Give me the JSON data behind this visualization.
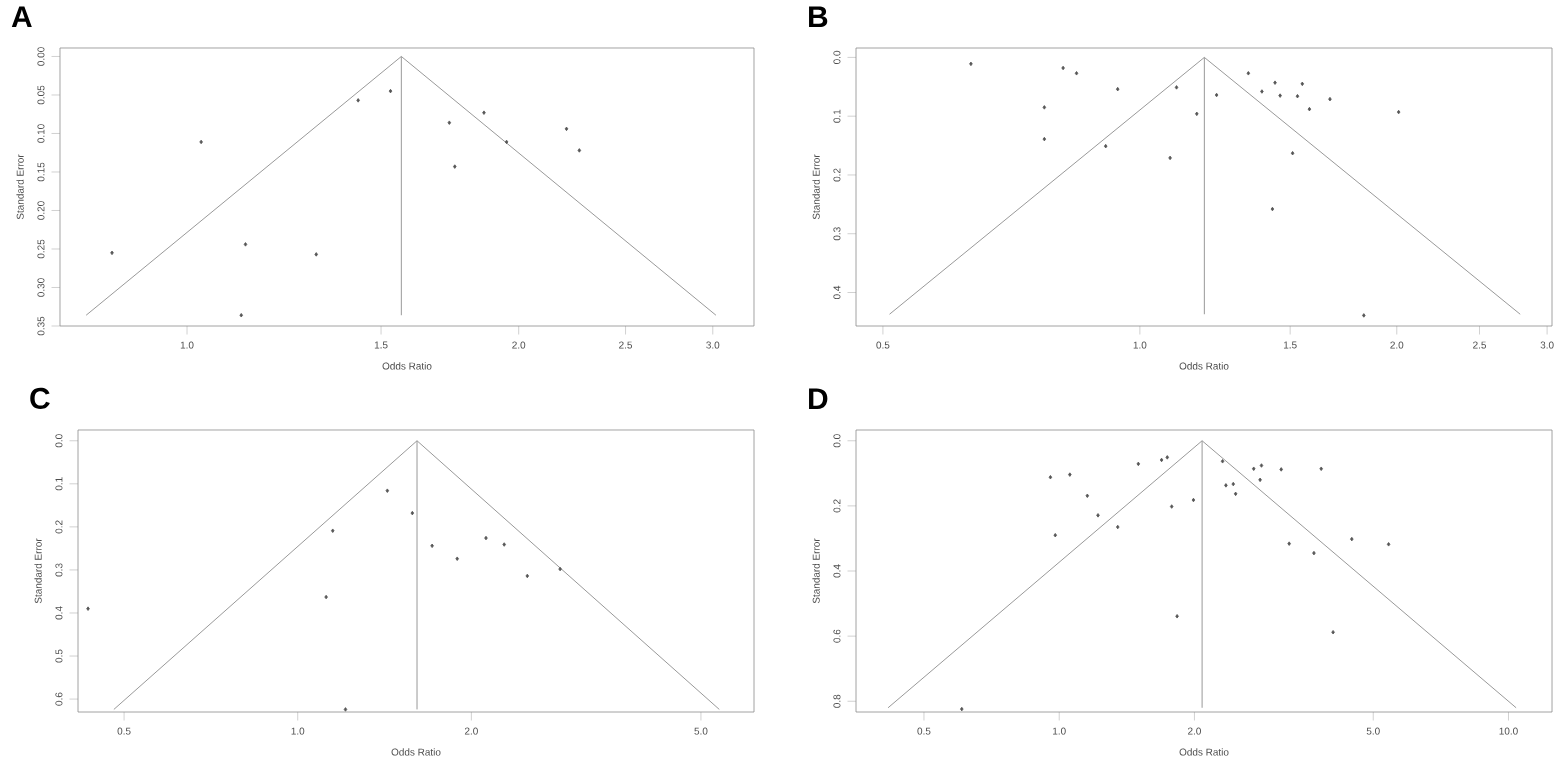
{
  "chart_data": [
    {
      "type": "scatter",
      "title": "A",
      "xlabel": "Odds Ratio",
      "ylabel": "Standard Error",
      "log": "x",
      "xlim": [
        0.767,
        3.27
      ],
      "ylim": [
        0.35,
        -0.011
      ],
      "xticks": [
        {
          "value": 1,
          "label": "1.0"
        },
        {
          "value": 1.5,
          "label": "1.5"
        },
        {
          "value": 2,
          "label": "2.0"
        },
        {
          "value": 2.5,
          "label": "2.5"
        },
        {
          "value": 3,
          "label": "3.0"
        }
      ],
      "yticks": [
        {
          "value": 0,
          "label": "0.00"
        },
        {
          "value": 0.05,
          "label": "0.05"
        },
        {
          "value": 0.1,
          "label": "0.10"
        },
        {
          "value": 0.15,
          "label": "0.15"
        },
        {
          "value": 0.2,
          "label": "0.20"
        },
        {
          "value": 0.25,
          "label": "0.25"
        },
        {
          "value": 0.3,
          "label": "0.30"
        },
        {
          "value": 0.35,
          "label": "0.35"
        }
      ],
      "series": [
        {
          "marker": "diamond",
          "color": "#555555",
          "x": [
            0.855,
            1.03,
            1.13,
            1.12,
            1.31,
            1.43,
            1.53,
            1.73,
            1.75,
            1.86,
            1.95,
            2.21,
            2.27
          ],
          "values": [
            0.255,
            0.111,
            0.244,
            0.336,
            0.257,
            0.057,
            0.045,
            0.086,
            0.143,
            0.073,
            0.111,
            0.094,
            0.122
          ]
        },
        {
          "type": "line",
          "color": "#999999",
          "x": [
            0.81,
            1.565,
            3.02
          ],
          "values": [
            0.336,
            0,
            0.336
          ]
        },
        {
          "type": "line",
          "color": "#999999",
          "x": [
            1.565,
            1.565
          ],
          "values": [
            0,
            0.336
          ]
        }
      ]
    },
    {
      "type": "scatter",
      "title": "B",
      "xlabel": "Odds Ratio",
      "ylabel": "Standard Error",
      "log": "x",
      "xlim": [
        0.465,
        3.04
      ],
      "ylim": [
        0.457,
        -0.016
      ],
      "xticks": [
        {
          "value": 0.5,
          "label": "0.5"
        },
        {
          "value": 1,
          "label": "1.0"
        },
        {
          "value": 1.5,
          "label": "1.5"
        },
        {
          "value": 2,
          "label": "2.0"
        },
        {
          "value": 2.5,
          "label": "2.5"
        },
        {
          "value": 3,
          "label": "3.0"
        }
      ],
      "yticks": [
        {
          "value": 0,
          "label": "0.0"
        },
        {
          "value": 0.1,
          "label": "0.1"
        },
        {
          "value": 0.2,
          "label": "0.2"
        },
        {
          "value": 0.3,
          "label": "0.3"
        },
        {
          "value": 0.4,
          "label": "0.4"
        }
      ],
      "series": [
        {
          "marker": "diamond",
          "color": "#555555",
          "x": [
            0.634,
            0.813,
            0.843,
            0.773,
            0.773,
            0.942,
            0.912,
            1.104,
            1.166,
            1.085,
            1.23,
            1.34,
            1.39,
            1.44,
            1.46,
            1.55,
            1.53,
            1.67,
            1.58,
            2.01,
            1.51,
            1.43,
            1.83
          ],
          "values": [
            0.011,
            0.018,
            0.027,
            0.085,
            0.139,
            0.054,
            0.151,
            0.051,
            0.096,
            0.171,
            0.064,
            0.027,
            0.058,
            0.043,
            0.065,
            0.045,
            0.066,
            0.071,
            0.088,
            0.093,
            0.163,
            0.258,
            0.439
          ]
        },
        {
          "type": "line",
          "color": "#999999",
          "x": [
            0.509,
            1.19,
            2.79
          ],
          "values": [
            0.437,
            0,
            0.437
          ]
        },
        {
          "type": "line",
          "color": "#999999",
          "x": [
            1.19,
            1.19
          ],
          "values": [
            0,
            0.437
          ]
        }
      ]
    },
    {
      "type": "scatter",
      "title": "C",
      "xlabel": "Odds Ratio",
      "ylabel": "Standard Error",
      "log": "x",
      "xlim": [
        0.416,
        6.18
      ],
      "ylim": [
        0.63,
        -0.025
      ],
      "xticks": [
        {
          "value": 0.5,
          "label": "0.5"
        },
        {
          "value": 1,
          "label": "1.0"
        },
        {
          "value": 2,
          "label": "2.0"
        },
        {
          "value": 5,
          "label": "5.0"
        }
      ],
      "yticks": [
        {
          "value": 0,
          "label": "0.0"
        },
        {
          "value": 0.1,
          "label": "0.1"
        },
        {
          "value": 0.2,
          "label": "0.2"
        },
        {
          "value": 0.3,
          "label": "0.3"
        },
        {
          "value": 0.4,
          "label": "0.4"
        },
        {
          "value": 0.5,
          "label": "0.5"
        },
        {
          "value": 0.6,
          "label": "0.6"
        }
      ],
      "series": [
        {
          "marker": "diamond",
          "color": "#555555",
          "x": [
            0.433,
            1.12,
            1.15,
            1.21,
            1.43,
            1.58,
            1.71,
            1.89,
            2.12,
            2.28,
            2.5,
            2.85
          ],
          "values": [
            0.39,
            0.363,
            0.209,
            0.624,
            0.116,
            0.168,
            0.244,
            0.274,
            0.226,
            0.241,
            0.314,
            0.298
          ]
        },
        {
          "type": "line",
          "color": "#999999",
          "x": [
            0.48,
            1.61,
            5.38
          ],
          "values": [
            0.624,
            0,
            0.624
          ]
        },
        {
          "type": "line",
          "color": "#999999",
          "x": [
            1.61,
            1.61
          ],
          "values": [
            0,
            0.624
          ]
        }
      ]
    },
    {
      "type": "scatter",
      "title": "D",
      "xlabel": "Odds Ratio",
      "ylabel": "Standard Error",
      "log": "x",
      "xlim": [
        0.353,
        12.5
      ],
      "ylim": [
        0.833,
        -0.033
      ],
      "xticks": [
        {
          "value": 0.5,
          "label": "0.5"
        },
        {
          "value": 1,
          "label": "1.0"
        },
        {
          "value": 2,
          "label": "2.0"
        },
        {
          "value": 5,
          "label": "5.0"
        },
        {
          "value": 10,
          "label": "10.0"
        }
      ],
      "yticks": [
        {
          "value": 0,
          "label": "0.0"
        },
        {
          "value": 0.2,
          "label": "0.2"
        },
        {
          "value": 0.4,
          "label": "0.4"
        },
        {
          "value": 0.6,
          "label": "0.6"
        },
        {
          "value": 0.8,
          "label": "0.8"
        }
      ],
      "series": [
        {
          "marker": "diamond",
          "color": "#555555",
          "x": [
            0.607,
            0.956,
            1.056,
            0.98,
            1.155,
            1.22,
            1.35,
            1.5,
            1.69,
            1.74,
            1.78,
            1.83,
            1.99,
            2.31,
            2.35,
            2.44,
            2.47,
            2.71,
            2.82,
            2.8,
            3.12,
            3.25,
            3.69,
            3.83,
            4.07,
            4.48,
            5.41
          ],
          "values": [
            0.824,
            0.112,
            0.104,
            0.29,
            0.169,
            0.229,
            0.265,
            0.071,
            0.059,
            0.051,
            0.202,
            0.539,
            0.182,
            0.063,
            0.137,
            0.133,
            0.163,
            0.086,
            0.076,
            0.12,
            0.088,
            0.316,
            0.345,
            0.086,
            0.588,
            0.302,
            0.318
          ]
        },
        {
          "type": "line",
          "color": "#999999",
          "x": [
            0.416,
            2.08,
            10.4
          ],
          "values": [
            0.82,
            0,
            0.82
          ]
        },
        {
          "type": "line",
          "color": "#999999",
          "x": [
            2.08,
            2.08
          ],
          "values": [
            0,
            0.82
          ]
        }
      ]
    }
  ]
}
